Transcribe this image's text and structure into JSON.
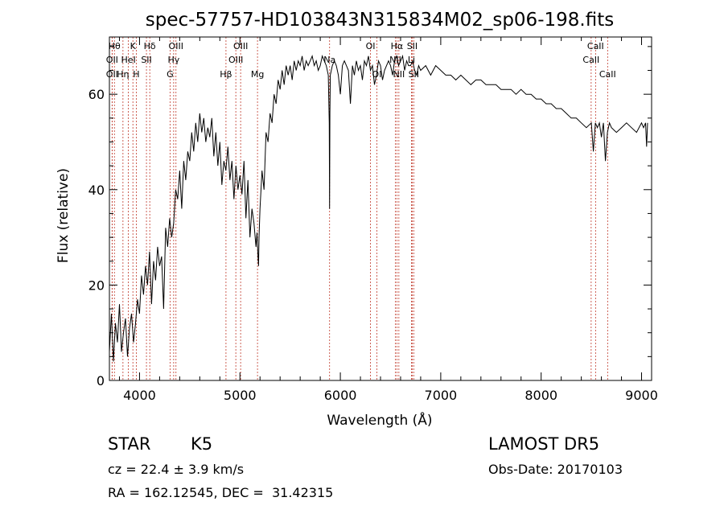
{
  "chart_data": {
    "type": "line",
    "title": "spec-57757-HD103843N315834M02_sp06-198.fits",
    "xlabel": "Wavelength (Å)",
    "ylabel": "Flux (relative)",
    "xlim": [
      3700,
      9100
    ],
    "ylim": [
      0,
      72
    ],
    "x_ticks": [
      4000,
      5000,
      6000,
      7000,
      8000,
      9000
    ],
    "y_ticks": [
      0,
      20,
      40,
      60
    ],
    "grid": false,
    "series": [
      {
        "x": [
          3700,
          3720,
          3740,
          3760,
          3780,
          3800,
          3820,
          3840,
          3860,
          3880,
          3900,
          3920,
          3940,
          3960,
          3980,
          4000,
          4020,
          4040,
          4060,
          4080,
          4100,
          4120,
          4140,
          4160,
          4180,
          4200,
          4220,
          4240,
          4260,
          4280,
          4300,
          4320,
          4340,
          4360,
          4380,
          4400,
          4420,
          4440,
          4460,
          4480,
          4500,
          4520,
          4540,
          4560,
          4580,
          4600,
          4620,
          4640,
          4660,
          4680,
          4700,
          4720,
          4740,
          4760,
          4780,
          4800,
          4820,
          4840,
          4860,
          4880,
          4900,
          4920,
          4940,
          4960,
          4980,
          5000,
          5020,
          5040,
          5060,
          5080,
          5100,
          5120,
          5140,
          5160,
          5170,
          5180,
          5185,
          5190,
          5200,
          5220,
          5240,
          5260,
          5280,
          5300,
          5320,
          5340,
          5360,
          5380,
          5400,
          5420,
          5440,
          5460,
          5480,
          5500,
          5520,
          5540,
          5560,
          5580,
          5600,
          5620,
          5640,
          5660,
          5680,
          5700,
          5720,
          5740,
          5760,
          5780,
          5800,
          5820,
          5840,
          5860,
          5880,
          5890,
          5893,
          5896,
          5900,
          5920,
          5940,
          5960,
          5980,
          6000,
          6020,
          6040,
          6060,
          6080,
          6100,
          6120,
          6140,
          6160,
          6180,
          6200,
          6220,
          6240,
          6260,
          6280,
          6300,
          6320,
          6340,
          6360,
          6380,
          6400,
          6420,
          6440,
          6460,
          6480,
          6500,
          6520,
          6540,
          6560,
          6580,
          6600,
          6620,
          6640,
          6660,
          6680,
          6700,
          6720,
          6740,
          6760,
          6780,
          6800,
          6850,
          6900,
          6950,
          7000,
          7050,
          7100,
          7150,
          7200,
          7250,
          7300,
          7350,
          7400,
          7450,
          7500,
          7550,
          7600,
          7650,
          7700,
          7750,
          7800,
          7850,
          7900,
          7950,
          8000,
          8050,
          8100,
          8150,
          8200,
          8250,
          8300,
          8350,
          8400,
          8450,
          8500,
          8520,
          8540,
          8560,
          8580,
          8600,
          8620,
          8640,
          8660,
          8680,
          8700,
          8750,
          8800,
          8850,
          8900,
          8950,
          9000,
          9020,
          9040,
          9050,
          9060
        ],
        "y": [
          6,
          14,
          4,
          12,
          8,
          16,
          6,
          10,
          13,
          5,
          11,
          14,
          8,
          12,
          17,
          14,
          22,
          18,
          24,
          20,
          27,
          16,
          25,
          21,
          28,
          24,
          26,
          15,
          32,
          28,
          34,
          30,
          33,
          40,
          38,
          44,
          36,
          46,
          42,
          48,
          46,
          52,
          48,
          54,
          50,
          56,
          52,
          55,
          50,
          53,
          51,
          55,
          47,
          52,
          45,
          50,
          41,
          46,
          44,
          49,
          42,
          46,
          38,
          45,
          40,
          43,
          39,
          46,
          34,
          42,
          30,
          36,
          33,
          28,
          31,
          26,
          24,
          30,
          36,
          44,
          40,
          52,
          50,
          56,
          54,
          60,
          58,
          63,
          61,
          65,
          62,
          66,
          64,
          66,
          63,
          67,
          65,
          67,
          66,
          68,
          65,
          67,
          66,
          67,
          68,
          66,
          67,
          65,
          66,
          68,
          67,
          66,
          64,
          54,
          36,
          56,
          64,
          66,
          67,
          66,
          64,
          60,
          66,
          67,
          66,
          65,
          58,
          66,
          64,
          67,
          65,
          66,
          63,
          67,
          66,
          68,
          65,
          66,
          62,
          64,
          67,
          66,
          63,
          65,
          66,
          67,
          66,
          64,
          67,
          68,
          66,
          67,
          68,
          65,
          67,
          66,
          66,
          67,
          65,
          64,
          66,
          65,
          66,
          64,
          66,
          65,
          64,
          64,
          63,
          64,
          63,
          62,
          63,
          63,
          62,
          62,
          62,
          61,
          61,
          61,
          60,
          61,
          60,
          60,
          59,
          59,
          58,
          58,
          57,
          57,
          56,
          55,
          55,
          54,
          53,
          54,
          48,
          54,
          53,
          54,
          51,
          54,
          46,
          52,
          54,
          53,
          52,
          53,
          54,
          53,
          52,
          54,
          53,
          54,
          49,
          54
        ]
      }
    ],
    "lines": [
      {
        "x": 3750,
        "label": "Hθ",
        "row": 0
      },
      {
        "x": 3727,
        "label": "OII",
        "row": 1
      },
      {
        "x": 3727,
        "label": "OII",
        "row": 2
      },
      {
        "x": 3835,
        "label": "Hη",
        "row": 2
      },
      {
        "x": 3889,
        "label": "HeI",
        "row": 1
      },
      {
        "x": 3934,
        "label": "K",
        "row": 0
      },
      {
        "x": 3968,
        "label": "H",
        "row": 2
      },
      {
        "x": 4069,
        "label": "SII",
        "row": 1
      },
      {
        "x": 4102,
        "label": "Hδ",
        "row": 0
      },
      {
        "x": 4304,
        "label": "G",
        "row": 2
      },
      {
        "x": 4340,
        "label": "Hγ",
        "row": 1
      },
      {
        "x": 4363,
        "label": "OIII",
        "row": 0
      },
      {
        "x": 4861,
        "label": "Hβ",
        "row": 2
      },
      {
        "x": 4959,
        "label": "OIII",
        "row": 1
      },
      {
        "x": 5007,
        "label": "OIII",
        "row": 0
      },
      {
        "x": 5175,
        "label": "Mg",
        "row": 2
      },
      {
        "x": 5893,
        "label": "Na",
        "row": 1
      },
      {
        "x": 6300,
        "label": "OI",
        "row": 0
      },
      {
        "x": 6364,
        "label": "OI",
        "row": 2
      },
      {
        "x": 6548,
        "label": "NII",
        "row": 1
      },
      {
        "x": 6563,
        "label": "Hα",
        "row": 0
      },
      {
        "x": 6583,
        "label": "NII",
        "row": 2
      },
      {
        "x": 6708,
        "label": "Li",
        "row": 1
      },
      {
        "x": 6716,
        "label": "SII",
        "row": 0
      },
      {
        "x": 6731,
        "label": "SII",
        "row": 2
      },
      {
        "x": 8498,
        "label": "CaII",
        "row": 1
      },
      {
        "x": 8542,
        "label": "CaII",
        "row": 0
      },
      {
        "x": 8662,
        "label": "CaII",
        "row": 2
      }
    ]
  },
  "info": {
    "class_label": "STAR",
    "subclass": "K5",
    "survey": "LAMOST DR5",
    "cz": "cz = 22.4 ± 3.9 km/s",
    "obs_date": "Obs-Date: 20170103",
    "coords": "RA = 162.12545, DEC =  31.42315"
  }
}
